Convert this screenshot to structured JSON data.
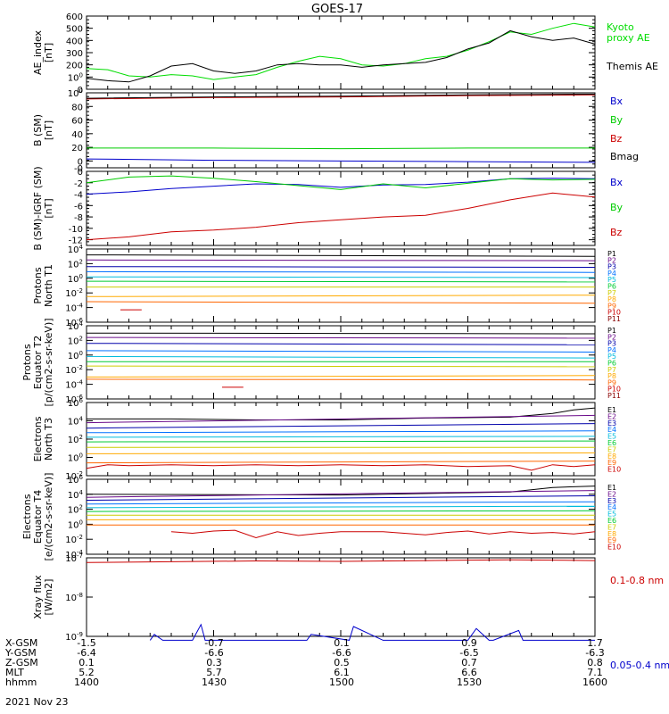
{
  "title": "GOES-17",
  "date_label": "2021 Nov 23",
  "ephemeris": {
    "labels": [
      "X-GSM",
      "Y-GSM",
      "Z-GSM",
      "MLT",
      "hhmm"
    ],
    "rows": [
      [
        "-1.5",
        "-0.7",
        "0.1",
        "0.9",
        "1.7"
      ],
      [
        "-6.4",
        "-6.6",
        "-6.6",
        "-6.5",
        "-6.3"
      ],
      [
        "0.1",
        "0.3",
        "0.5",
        "0.7",
        "0.8"
      ],
      [
        "5.2",
        "5.7",
        "6.1",
        "6.6",
        "7.1"
      ],
      [
        "1400",
        "1430",
        "1500",
        "1530",
        "1600"
      ]
    ]
  },
  "chart_data": [
    {
      "type": "line",
      "ylabel": "AE_index\n[nT]",
      "ylim": [
        0,
        600
      ],
      "yscale": "linear",
      "yticks": [
        "0",
        "100",
        "200",
        "300",
        "400",
        "500",
        "600"
      ],
      "xlim": [
        0,
        120
      ],
      "series": [
        {
          "name": "Kyoto\nproxy AE",
          "color": "#00dd00",
          "x": [
            0,
            5,
            10,
            15,
            20,
            25,
            30,
            35,
            40,
            45,
            50,
            55,
            60,
            65,
            70,
            75,
            80,
            85,
            90,
            95,
            100,
            105,
            110,
            115,
            120
          ],
          "y": [
            170,
            160,
            110,
            100,
            120,
            110,
            80,
            100,
            120,
            180,
            230,
            270,
            250,
            200,
            190,
            210,
            250,
            270,
            320,
            390,
            470,
            450,
            500,
            540,
            510
          ]
        },
        {
          "name": "Themis AE",
          "color": "#000000",
          "x": [
            0,
            5,
            10,
            15,
            20,
            25,
            30,
            35,
            40,
            45,
            50,
            55,
            60,
            65,
            70,
            75,
            80,
            85,
            90,
            95,
            100,
            105,
            110,
            115,
            120
          ],
          "y": [
            90,
            70,
            60,
            110,
            190,
            210,
            150,
            130,
            150,
            200,
            210,
            200,
            200,
            180,
            200,
            210,
            220,
            260,
            330,
            380,
            480,
            430,
            400,
            420,
            370
          ]
        }
      ]
    },
    {
      "type": "line",
      "ylabel": "B (SM)\n[nT]",
      "ylim": [
        -10,
        100
      ],
      "yscale": "linear",
      "yticks": [
        "-0",
        "0",
        "20",
        "40",
        "60",
        "80",
        "100"
      ],
      "xlim": [
        0,
        120
      ],
      "series": [
        {
          "name": "Bx",
          "color": "#0000cc",
          "x": [
            0,
            30,
            60,
            90,
            120
          ],
          "y": [
            3,
            1,
            0,
            -1,
            -2
          ]
        },
        {
          "name": "By",
          "color": "#00cc00",
          "x": [
            0,
            30,
            60,
            90,
            120
          ],
          "y": [
            19,
            19,
            18,
            19,
            19
          ]
        },
        {
          "name": "Bz",
          "color": "#cc0000",
          "x": [
            0,
            30,
            60,
            90,
            120
          ],
          "y": [
            91,
            93,
            94,
            96,
            97
          ]
        },
        {
          "name": "Bmag",
          "color": "#000000",
          "x": [
            0,
            30,
            60,
            90,
            120
          ],
          "y": [
            92,
            94,
            95,
            97,
            98
          ]
        }
      ]
    },
    {
      "type": "line",
      "ylabel": "B (SM)-IGRF (SM)\n[nT]",
      "ylim": [
        -13,
        0
      ],
      "yscale": "linear",
      "yticks": [
        "-12",
        "-10",
        "-8",
        "-6",
        "-4",
        "-2",
        "0"
      ],
      "xlim": [
        0,
        120
      ],
      "series": [
        {
          "name": "Bx",
          "color": "#0000cc",
          "x": [
            0,
            10,
            20,
            30,
            40,
            50,
            60,
            70,
            80,
            90,
            100,
            110,
            120
          ],
          "y": [
            -4,
            -3.6,
            -3,
            -2.6,
            -2.2,
            -2.3,
            -2.8,
            -2.4,
            -2.3,
            -1.9,
            -1.3,
            -1.2,
            -1.3
          ]
        },
        {
          "name": "By",
          "color": "#00cc00",
          "x": [
            0,
            10,
            20,
            30,
            40,
            50,
            60,
            70,
            80,
            90,
            100,
            110,
            120
          ],
          "y": [
            -2,
            -1,
            -0.8,
            -1.2,
            -1.8,
            -2.5,
            -3.2,
            -2.2,
            -2.9,
            -2.1,
            -1.3,
            -1.5,
            -1.4
          ]
        },
        {
          "name": "Bz",
          "color": "#cc0000",
          "x": [
            0,
            10,
            20,
            30,
            40,
            50,
            60,
            70,
            80,
            90,
            100,
            110,
            120
          ],
          "y": [
            -12,
            -11.5,
            -10.6,
            -10.3,
            -9.8,
            -9,
            -8.5,
            -8,
            -7.7,
            -6.5,
            -5,
            -3.8,
            -4.5
          ]
        }
      ]
    },
    {
      "type": "line",
      "ylabel": "Protons\nNorth T1",
      "ylim": [
        -6,
        4
      ],
      "yscale": "log10",
      "yticks": [
        "10-6",
        "10-4",
        "10-2",
        "100",
        "102",
        "104"
      ],
      "xlim": [
        0,
        120
      ],
      "series": [
        {
          "name": "P1",
          "color": "#000000",
          "x": [
            0,
            120
          ],
          "y": [
            3.2,
            3.0
          ]
        },
        {
          "name": "P2",
          "color": "#6a0a8a",
          "x": [
            0,
            120
          ],
          "y": [
            2.5,
            2.4
          ]
        },
        {
          "name": "P3",
          "color": "#0000aa",
          "x": [
            0,
            120
          ],
          "y": [
            1.6,
            1.5
          ]
        },
        {
          "name": "P4",
          "color": "#0070ff",
          "x": [
            0,
            120
          ],
          "y": [
            0.9,
            0.8
          ]
        },
        {
          "name": "P5",
          "color": "#00bbdd",
          "x": [
            0,
            120
          ],
          "y": [
            0.2,
            0.1
          ]
        },
        {
          "name": "P6",
          "color": "#00cc33",
          "x": [
            0,
            120
          ],
          "y": [
            -0.4,
            -0.5
          ]
        },
        {
          "name": "P7",
          "color": "#cccc00",
          "x": [
            0,
            120
          ],
          "y": [
            -1.2,
            -1.2
          ]
        },
        {
          "name": "P8",
          "color": "#ffaa00",
          "x": [
            0,
            120
          ],
          "y": [
            -2.5,
            -2.3
          ]
        },
        {
          "name": "P9",
          "color": "#ff6600",
          "x": [
            0,
            120
          ],
          "y": [
            -3.2,
            -3.4
          ]
        },
        {
          "name": "P10",
          "color": "#cc0000",
          "x": [
            8,
            13
          ],
          "y": [
            -4.3,
            -4.3
          ]
        },
        {
          "name": "P11",
          "color": "#880000",
          "x": [],
          "y": []
        }
      ]
    },
    {
      "type": "line",
      "ylabel": "Protons\nEquator T2\n[p/(cm2-s-sr-keV)]",
      "ylim": [
        -6,
        4
      ],
      "yscale": "log10",
      "yticks": [
        "10-6",
        "10-4",
        "10-2",
        "100",
        "102",
        "104"
      ],
      "xlim": [
        0,
        120
      ],
      "series": [
        {
          "name": "P1",
          "color": "#000000",
          "x": [
            0,
            120
          ],
          "y": [
            3.0,
            2.9
          ]
        },
        {
          "name": "P2",
          "color": "#6a0a8a",
          "x": [
            0,
            120
          ],
          "y": [
            2.4,
            2.3
          ]
        },
        {
          "name": "P3",
          "color": "#0000aa",
          "x": [
            0,
            120
          ],
          "y": [
            1.6,
            1.4
          ]
        },
        {
          "name": "P4",
          "color": "#0070ff",
          "x": [
            0,
            120
          ],
          "y": [
            0.6,
            0.4
          ]
        },
        {
          "name": "P5",
          "color": "#00bbdd",
          "x": [
            0,
            120
          ],
          "y": [
            -0.2,
            -0.4
          ]
        },
        {
          "name": "P6",
          "color": "#00cc33",
          "x": [
            0,
            120
          ],
          "y": [
            -0.9,
            -0.9
          ]
        },
        {
          "name": "P7",
          "color": "#cccc00",
          "x": [
            0,
            120
          ],
          "y": [
            -1.5,
            -1.6
          ]
        },
        {
          "name": "P8",
          "color": "#ffaa00",
          "x": [
            0,
            120
          ],
          "y": [
            -3.0,
            -2.8
          ]
        },
        {
          "name": "P9",
          "color": "#ff6600",
          "x": [
            0,
            120
          ],
          "y": [
            -3.3,
            -3.4
          ]
        },
        {
          "name": "P10",
          "color": "#cc0000",
          "x": [
            32,
            37
          ],
          "y": [
            -4.4,
            -4.4
          ]
        },
        {
          "name": "P11",
          "color": "#880000",
          "x": [],
          "y": []
        }
      ]
    },
    {
      "type": "line",
      "ylabel": "Electrons\nNorth T3",
      "ylim": [
        -2,
        6
      ],
      "yscale": "log10",
      "yticks": [
        "10-2",
        "100",
        "102",
        "104",
        "106"
      ],
      "xlim": [
        0,
        120
      ],
      "series": [
        {
          "name": "E1",
          "color": "#000000",
          "x": [
            0,
            20,
            40,
            60,
            80,
            100,
            110,
            115,
            120
          ],
          "y": [
            4.2,
            4.2,
            4.1,
            4.1,
            4.3,
            4.4,
            4.8,
            5.2,
            5.4
          ]
        },
        {
          "name": "E2",
          "color": "#6a0a8a",
          "x": [
            0,
            120
          ],
          "y": [
            3.8,
            4.6
          ]
        },
        {
          "name": "E3",
          "color": "#0000aa",
          "x": [
            0,
            120
          ],
          "y": [
            3.2,
            3.7
          ]
        },
        {
          "name": "E4",
          "color": "#0070ff",
          "x": [
            0,
            120
          ],
          "y": [
            2.7,
            2.9
          ]
        },
        {
          "name": "E5",
          "color": "#00bbdd",
          "x": [
            0,
            120
          ],
          "y": [
            2.2,
            2.3
          ]
        },
        {
          "name": "E6",
          "color": "#00cc33",
          "x": [
            0,
            120
          ],
          "y": [
            1.7,
            1.8
          ]
        },
        {
          "name": "E7",
          "color": "#cccc00",
          "x": [
            0,
            120
          ],
          "y": [
            1.1,
            1.1
          ]
        },
        {
          "name": "E8",
          "color": "#ffaa00",
          "x": [
            0,
            120
          ],
          "y": [
            0.4,
            0.5
          ]
        },
        {
          "name": "E9",
          "color": "#ff6600",
          "x": [
            0,
            120
          ],
          "y": [
            -0.6,
            -0.4
          ]
        },
        {
          "name": "E10",
          "color": "#cc0000",
          "x": [
            0,
            5,
            10,
            20,
            30,
            40,
            50,
            60,
            70,
            80,
            90,
            100,
            105,
            110,
            115,
            120
          ],
          "y": [
            -1.2,
            -0.8,
            -0.9,
            -0.8,
            -0.9,
            -0.8,
            -0.9,
            -0.8,
            -0.9,
            -0.8,
            -1.0,
            -0.9,
            -1.4,
            -0.8,
            -1.0,
            -0.8
          ]
        }
      ]
    },
    {
      "type": "line",
      "ylabel": "Electrons\nEquator T4\n[e/(cm2-s-sr-keV)]",
      "ylim": [
        -4,
        6
      ],
      "yscale": "log10",
      "yticks": [
        "10-4",
        "10-2",
        "100",
        "102",
        "104",
        "106"
      ],
      "xlim": [
        0,
        120
      ],
      "series": [
        {
          "name": "E1",
          "color": "#000000",
          "x": [
            0,
            60,
            100,
            110,
            120
          ],
          "y": [
            4.0,
            3.9,
            4.3,
            4.9,
            5.1
          ]
        },
        {
          "name": "E2",
          "color": "#6a0a8a",
          "x": [
            0,
            120
          ],
          "y": [
            3.6,
            4.5
          ]
        },
        {
          "name": "E3",
          "color": "#0000aa",
          "x": [
            0,
            120
          ],
          "y": [
            3.2,
            3.8
          ]
        },
        {
          "name": "E4",
          "color": "#0070ff",
          "x": [
            0,
            120
          ],
          "y": [
            2.7,
            3.0
          ]
        },
        {
          "name": "E5",
          "color": "#00bbdd",
          "x": [
            0,
            120
          ],
          "y": [
            2.2,
            2.4
          ]
        },
        {
          "name": "E6",
          "color": "#00cc33",
          "x": [
            0,
            120
          ],
          "y": [
            1.7,
            1.8
          ]
        },
        {
          "name": "E7",
          "color": "#cccc00",
          "x": [
            0,
            120
          ],
          "y": [
            1.2,
            1.2
          ]
        },
        {
          "name": "E8",
          "color": "#ffaa00",
          "x": [
            0,
            120
          ],
          "y": [
            0.6,
            0.6
          ]
        },
        {
          "name": "E9",
          "color": "#ff6600",
          "x": [
            0,
            120
          ],
          "y": [
            -0.1,
            -0.1
          ]
        },
        {
          "name": "E10",
          "color": "#cc0000",
          "x": [
            20,
            25,
            30,
            35,
            40,
            45,
            50,
            55,
            60,
            70,
            80,
            85,
            90,
            95,
            100,
            105,
            110,
            115,
            120
          ],
          "y": [
            -1.0,
            -1.2,
            -0.9,
            -0.8,
            -1.8,
            -1.0,
            -1.5,
            -1.2,
            -1.0,
            -1.0,
            -1.4,
            -1.1,
            -0.9,
            -1.3,
            -1.0,
            -1.2,
            -1.1,
            -1.3,
            -1.0
          ]
        }
      ]
    },
    {
      "type": "line",
      "ylabel": "Xray flux\n[W/m2]",
      "ylim": [
        -9,
        -7
      ],
      "yscale": "log10",
      "yticks": [
        "10-9",
        "10-8",
        "10-7"
      ],
      "xlim": [
        0,
        120
      ],
      "series": [
        {
          "name": "0.1-0.8 nm",
          "color": "#cc0000",
          "x": [
            0,
            20,
            40,
            60,
            80,
            100,
            110,
            120
          ],
          "y": [
            -7.12,
            -7.1,
            -7.08,
            -7.09,
            -7.07,
            -7.05,
            -7.06,
            -7.07
          ]
        },
        {
          "name": "0.05-0.4 nm",
          "color": "#0000cc",
          "x": [
            15,
            16,
            18,
            25,
            27,
            28,
            40,
            52,
            53,
            62,
            63,
            70,
            72,
            73,
            90,
            92,
            95,
            96,
            102,
            103,
            107,
            108,
            120
          ],
          "y": [
            -9.1,
            -8.95,
            -9.1,
            -9.1,
            -8.7,
            -9.1,
            -9.1,
            -9.1,
            -8.95,
            -9.1,
            -8.75,
            -9.1,
            -9.1,
            -9.1,
            -9.1,
            -8.8,
            -9.1,
            -9.1,
            -8.85,
            -9.1,
            -9.1,
            -9.1,
            -9.1
          ]
        }
      ]
    }
  ]
}
